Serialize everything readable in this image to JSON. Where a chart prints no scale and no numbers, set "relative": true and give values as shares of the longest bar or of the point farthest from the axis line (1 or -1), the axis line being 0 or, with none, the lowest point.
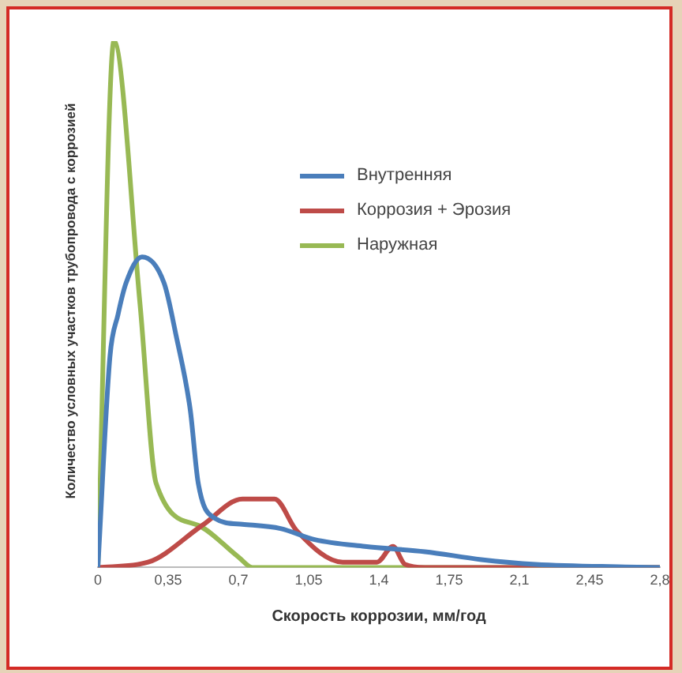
{
  "chart_data": {
    "type": "line",
    "relative": true,
    "xlabel": "Скорость коррозии, мм/год",
    "ylabel": "Количество условных участков трубопровода с коррозией",
    "xlim": [
      0,
      2.8
    ],
    "xticks": [
      0,
      {
        "value": 0.35,
        "label": "0,35"
      },
      {
        "value": 0.7,
        "label": "0,7"
      },
      {
        "value": 1.05,
        "label": "1,05"
      },
      {
        "value": 1.4,
        "label": "1,4"
      },
      {
        "value": 1.75,
        "label": "1,75"
      },
      {
        "value": 2.1,
        "label": "2,1"
      },
      {
        "value": 2.45,
        "label": "2,45"
      },
      {
        "value": 2.8,
        "label": "2,8"
      }
    ],
    "legend": "top right",
    "grid": false,
    "series": [
      {
        "name": "Внутренняя",
        "color": "#4a7ebb",
        "x": [
          0,
          0.06,
          0.1,
          0.14,
          0.22,
          0.33,
          0.39,
          0.46,
          0.5,
          0.58,
          0.72,
          0.91,
          1.08,
          1.33,
          1.63,
          1.91,
          2.18,
          2.8
        ],
        "values": [
          0,
          0.4,
          0.48,
          0.54,
          0.59,
          0.54,
          0.44,
          0.3,
          0.16,
          0.094,
          0.082,
          0.074,
          0.053,
          0.04,
          0.03,
          0.015,
          0.006,
          0
        ]
      },
      {
        "name": "Коррозия + Эрозия",
        "color": "#be4b48",
        "x": [
          0,
          0.25,
          0.52,
          0.72,
          0.88,
          0.99,
          1.22,
          1.39,
          1.47,
          1.53,
          1.63,
          2.8
        ],
        "values": [
          0,
          0.01,
          0.08,
          0.13,
          0.13,
          0.07,
          0.01,
          0.01,
          0.04,
          0.006,
          0,
          0
        ]
      },
      {
        "name": "Наружная",
        "color": "#98b954",
        "x": [
          0,
          0.08,
          0.21,
          0.29,
          0.5,
          0.7,
          0.77,
          2.8
        ],
        "values": [
          0,
          1,
          0.5,
          0.16,
          0.08,
          0.02,
          0,
          0
        ]
      }
    ]
  }
}
